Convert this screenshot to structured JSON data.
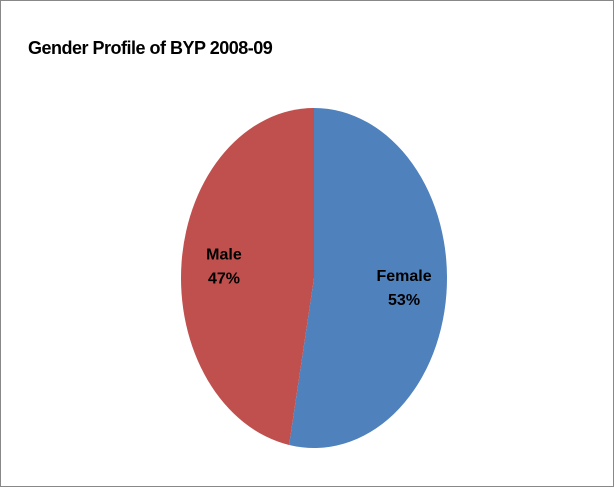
{
  "chart_data": {
    "type": "pie",
    "title": "Gender Profile of BYP 2008-09",
    "categories": [
      "Female",
      "Male"
    ],
    "values": [
      53,
      47
    ],
    "value_labels": [
      "53%",
      "47%"
    ],
    "colors": [
      "#4f81bd",
      "#c0504d"
    ]
  }
}
